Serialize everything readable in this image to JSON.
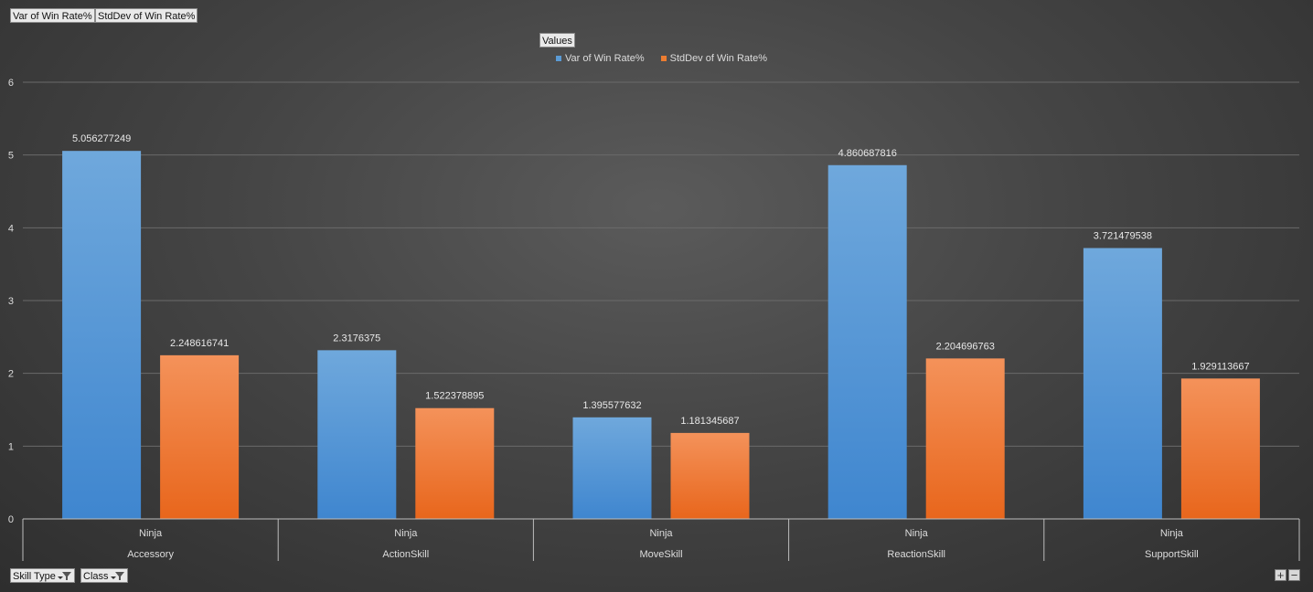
{
  "value_field_buttons": [
    "Var of Win Rate%",
    "StdDev of Win Rate%"
  ],
  "legend": {
    "title": "Values",
    "items": [
      {
        "label": "Var of Win Rate%",
        "color": "#5b9bd5"
      },
      {
        "label": "StdDev of Win Rate%",
        "color": "#ed7d31"
      }
    ]
  },
  "axis_field_buttons": [
    {
      "label": "Skill Type",
      "icon": "filter-dropdown-icon"
    },
    {
      "label": "Class",
      "icon": "filter-dropdown-icon"
    }
  ],
  "zoom": {
    "plus": "+",
    "minus": "−"
  },
  "chart_data": {
    "type": "bar",
    "title": "",
    "xlabel": "",
    "ylabel": "",
    "ylim": [
      0,
      6
    ],
    "yticks": [
      0,
      1,
      2,
      3,
      4,
      5,
      6
    ],
    "grid": true,
    "legend_position": "top-center",
    "categories": [
      {
        "outer": "Accessory",
        "inner": "Ninja"
      },
      {
        "outer": "ActionSkill",
        "inner": "Ninja"
      },
      {
        "outer": "MoveSkill",
        "inner": "Ninja"
      },
      {
        "outer": "ReactionSkill",
        "inner": "Ninja"
      },
      {
        "outer": "SupportSkill",
        "inner": "Ninja"
      }
    ],
    "series": [
      {
        "name": "Var of Win Rate%",
        "color": "#5b9bd5",
        "values": [
          5.056277249,
          2.3176375,
          1.395577632,
          4.860687816,
          3.721479538
        ],
        "labels": [
          "5.056277249",
          "2.3176375",
          "1.395577632",
          "4.860687816",
          "3.721479538"
        ]
      },
      {
        "name": "StdDev of Win Rate%",
        "color": "#ed7d31",
        "values": [
          2.248616741,
          1.522378895,
          1.181345687,
          2.204696763,
          1.929113667
        ],
        "labels": [
          "2.248616741",
          "1.522378895",
          "1.181345687",
          "2.204696763",
          "1.929113667"
        ]
      }
    ]
  }
}
